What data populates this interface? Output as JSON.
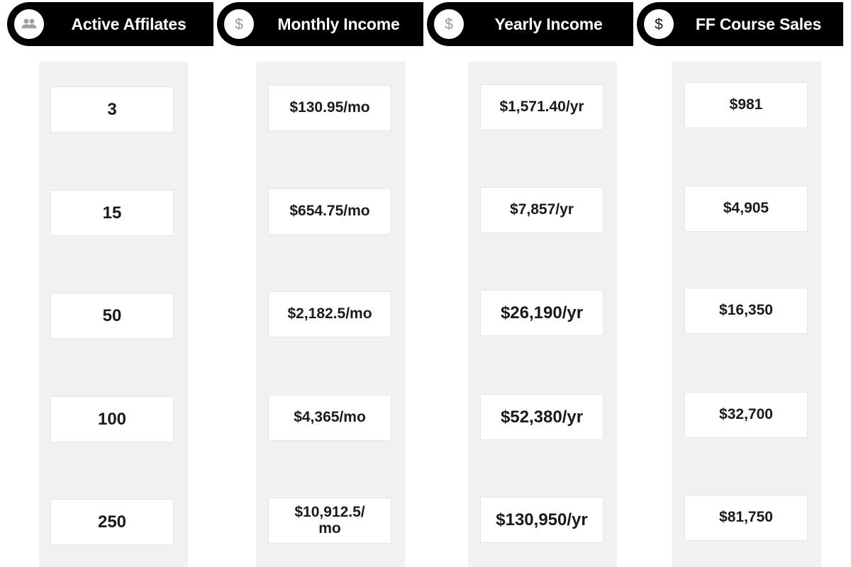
{
  "headers": {
    "affiliates": {
      "label": "Active Affilates",
      "icon": "people-icon"
    },
    "monthly": {
      "label": "Monthly Income",
      "icon": "dollar-icon"
    },
    "yearly": {
      "label": "Yearly Income",
      "icon": "dollar-icon"
    },
    "course": {
      "label": "FF Course Sales",
      "icon": "dollar-icon"
    }
  },
  "rows": [
    {
      "affiliates": "3",
      "monthly": "$130.95/mo",
      "yearly": "$1,571.40/yr",
      "course": "$981"
    },
    {
      "affiliates": "15",
      "monthly": "$654.75/mo",
      "yearly": "$7,857/yr",
      "course": "$4,905"
    },
    {
      "affiliates": "50",
      "monthly": "$2,182.5/mo",
      "yearly": "$26,190/yr",
      "course": "$16,350"
    },
    {
      "affiliates": "100",
      "monthly": "$4,365/mo",
      "yearly": "$52,380/yr",
      "course": "$32,700"
    },
    {
      "affiliates": "250",
      "monthly": "$10,912.5/ mo",
      "yearly": "$130,950/yr",
      "course": "$81,750"
    }
  ],
  "colors": {
    "header_bg": "#000000",
    "header_text": "#ffffff",
    "column_bg": "#f1f1f1",
    "cell_bg": "#ffffff",
    "icon_gray": "#9a9a9a",
    "icon_dark": "#1a1a1a"
  }
}
